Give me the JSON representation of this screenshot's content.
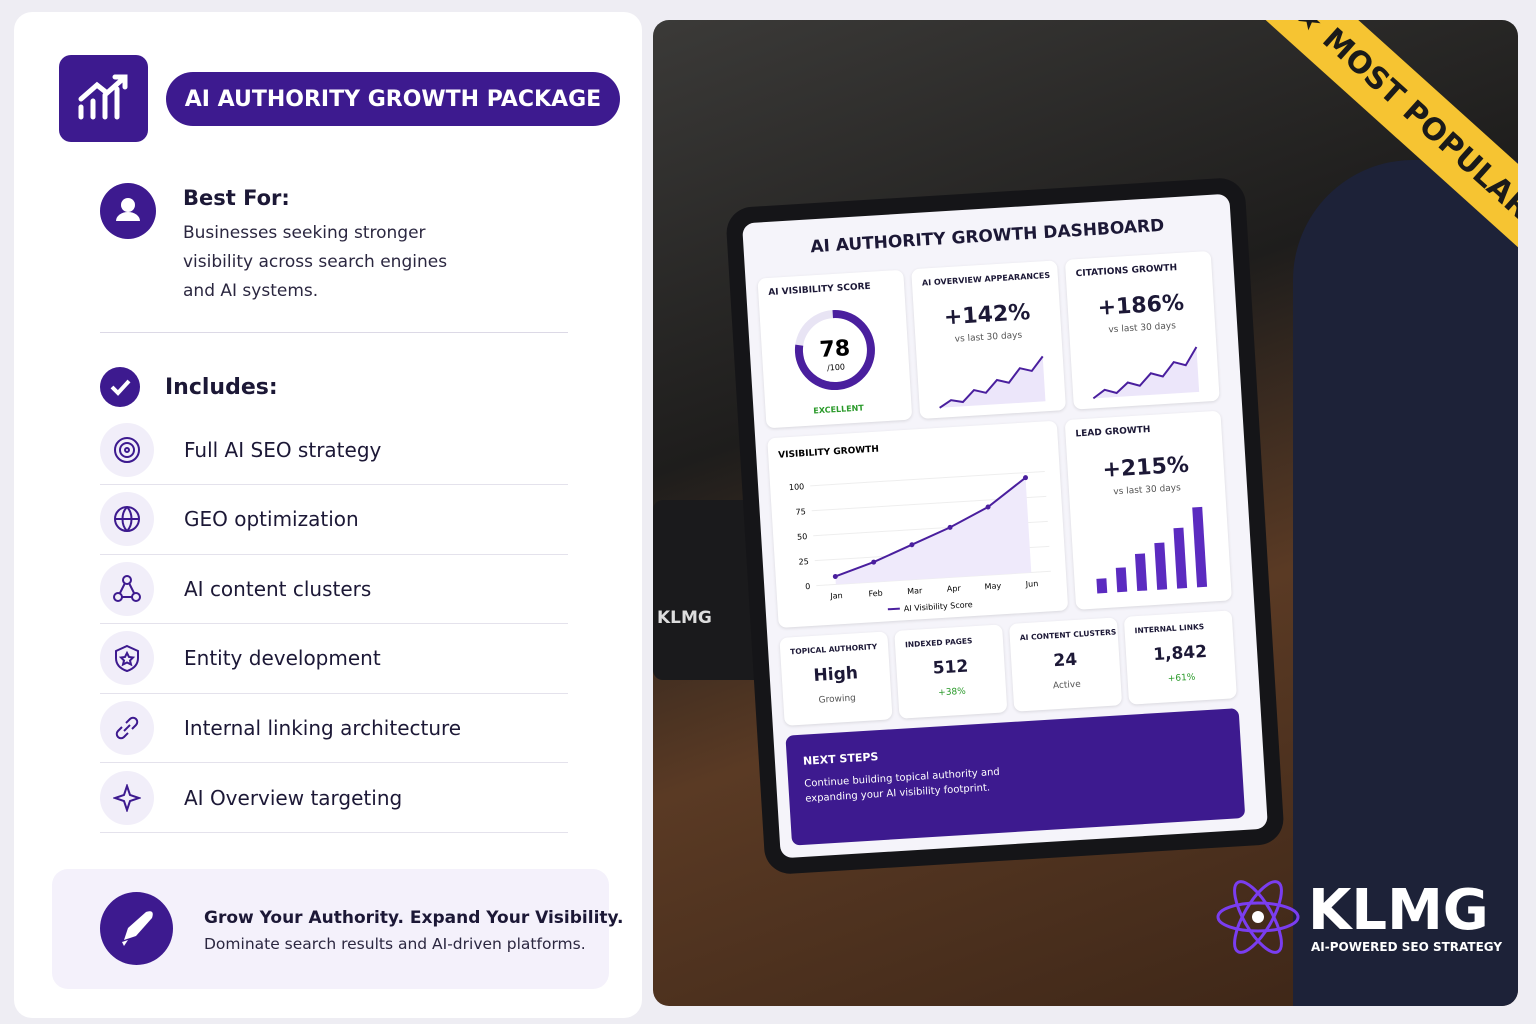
{
  "header": {
    "title": "AI AUTHORITY GROWTH PACKAGE"
  },
  "best_for": {
    "label": "Best For:",
    "lines": [
      "Businesses seeking stronger",
      "visibility across search engines",
      "and AI systems."
    ]
  },
  "includes": {
    "label": "Includes:",
    "items": [
      "Full AI SEO strategy",
      "GEO optimization",
      "AI content clusters",
      "Entity development",
      "Internal linking architecture",
      "AI Overview targeting"
    ]
  },
  "footer": {
    "title": "Grow Your Authority. Expand Your Visibility.",
    "text": "Dominate search results and AI-driven platforms."
  },
  "badge": "MOST POPULAR",
  "brand": {
    "name": "KLMG",
    "tagline": "AI-POWERED SEO STRATEGY"
  },
  "mug_text": "KLMG",
  "dashboard": {
    "title": "AI AUTHORITY GROWTH DASHBOARD",
    "score": {
      "label": "AI VISIBILITY SCORE",
      "value": 78,
      "max": {
        "value": 100,
        "label": "/100"
      },
      "rating": "EXCELLENT"
    },
    "overview": {
      "label": "AI OVERVIEW APPEARANCES",
      "value": "+142%",
      "note": "vs last 30 days",
      "trend": [
        10,
        18,
        15,
        28,
        24,
        38,
        34,
        50,
        46,
        62
      ]
    },
    "citations": {
      "label": "CITATIONS GROWTH",
      "value": "+186%",
      "note": "vs last 30 days",
      "trend": [
        12,
        20,
        16,
        26,
        22,
        34,
        30,
        44,
        40,
        58
      ]
    },
    "visibility": {
      "type": "line",
      "title": "VISIBILITY GROWTH",
      "categories": [
        "Jan",
        "Feb",
        "Mar",
        "Apr",
        "May",
        "Jun"
      ],
      "ylim": [
        0,
        100
      ],
      "yticks": [
        0,
        25,
        50,
        75,
        100
      ],
      "series": [
        {
          "name": "AI Visibility Score",
          "color": "#4a1f9e",
          "values": [
            8,
            20,
            35,
            50,
            68,
            95
          ]
        }
      ]
    },
    "lead": {
      "label": "LEAD GROWTH",
      "value": "+215%",
      "note": "vs last 30 days",
      "bars": [
        15,
        25,
        38,
        48,
        62,
        82
      ]
    },
    "tiles": [
      {
        "label": "TOPICAL AUTHORITY",
        "value": "High",
        "note": "Growing"
      },
      {
        "label": "INDEXED PAGES",
        "value": 512,
        "note": "+38%"
      },
      {
        "label": "AI CONTENT CLUSTERS",
        "value": 24,
        "note": "Active"
      },
      {
        "label": "INTERNAL LINKS",
        "value": "1,842",
        "note": "+61%"
      }
    ],
    "next": {
      "label": "NEXT STEPS",
      "text": "Continue building topical authority and expanding your AI visibility footprint."
    }
  }
}
